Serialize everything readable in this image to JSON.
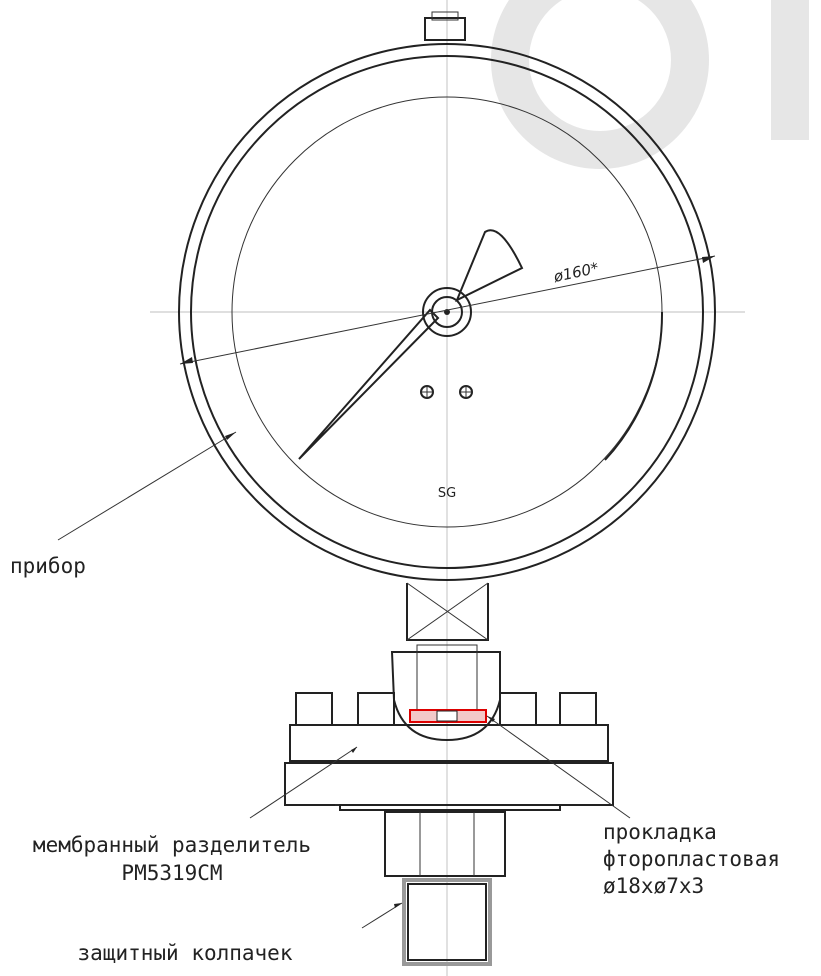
{
  "diagram": {
    "dimension": "ø160*",
    "brand": "SG",
    "labels": {
      "gauge": "прибор",
      "separator": [
        "мембранный разделитель",
        "РМ5319СМ"
      ],
      "gasket": [
        "прокладка",
        "фторопластовая",
        "ø18xø7x3"
      ],
      "cap": "защитный колпачек"
    }
  }
}
